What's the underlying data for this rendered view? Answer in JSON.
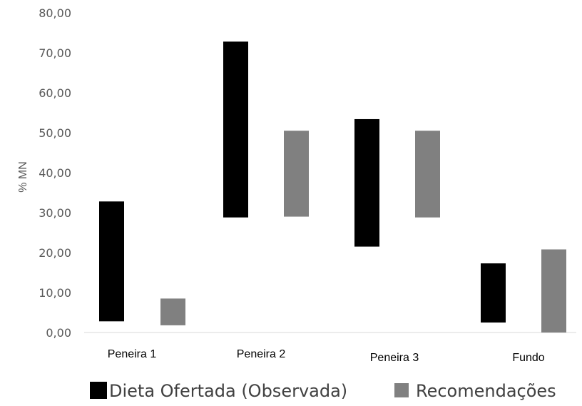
{
  "chart_data": {
    "type": "bar",
    "subtype": "floating-range",
    "ylabel": "% MN",
    "ylim": [
      0,
      80
    ],
    "yticks": [
      "0,00",
      "10,00",
      "20,00",
      "30,00",
      "40,00",
      "50,00",
      "60,00",
      "70,00",
      "80,00"
    ],
    "categories": [
      "Peneira 1",
      "Peneira 2",
      "Peneira 3",
      "Fundo"
    ],
    "series": [
      {
        "name": "Dieta Ofertada (Observada)",
        "color": "#000000",
        "ranges": [
          [
            2.8,
            32.8
          ],
          [
            28.8,
            72.8
          ],
          [
            21.5,
            53.4
          ],
          [
            2.5,
            17.3
          ]
        ]
      },
      {
        "name": "Recomendações",
        "color": "#808080",
        "ranges": [
          [
            1.8,
            8.5
          ],
          [
            29.0,
            50.5
          ],
          [
            28.8,
            50.5
          ],
          [
            0.0,
            20.8
          ]
        ]
      }
    ],
    "grid": false,
    "legend": "bottom"
  }
}
